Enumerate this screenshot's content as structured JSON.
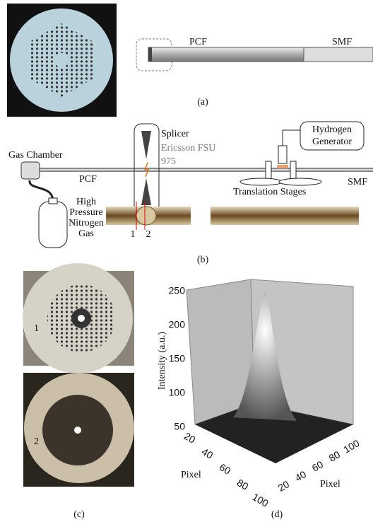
{
  "panel_a": {
    "fiber_left": "PCF",
    "fiber_right": "SMF",
    "caption": "(a)"
  },
  "panel_b": {
    "gas_chamber": "Gas Chamber",
    "fiber_left": "PCF",
    "splicer": "Splicer",
    "splicer_model": [
      "Ericsson FSU",
      "975"
    ],
    "generator": [
      "Hydrogen",
      "Generator"
    ],
    "stages": "Translation Stages",
    "fiber_right": "SMF",
    "gas_source": [
      "High",
      "Pressure",
      "Nitrogen",
      "Gas"
    ],
    "positions": [
      "1",
      "2"
    ],
    "caption": "(b)"
  },
  "panel_c": {
    "images": [
      "1",
      "2"
    ],
    "caption": "(c)"
  },
  "panel_d": {
    "z_label": "Intensity (a.u.)",
    "z_ticks": [
      250,
      200,
      150,
      100,
      50
    ],
    "x_label": "Pixel",
    "x_ticks": [
      20,
      40,
      60,
      80,
      100
    ],
    "y_label": "Pixel",
    "y_ticks": [
      100,
      80,
      60,
      40,
      20
    ],
    "caption": "(d)"
  }
}
